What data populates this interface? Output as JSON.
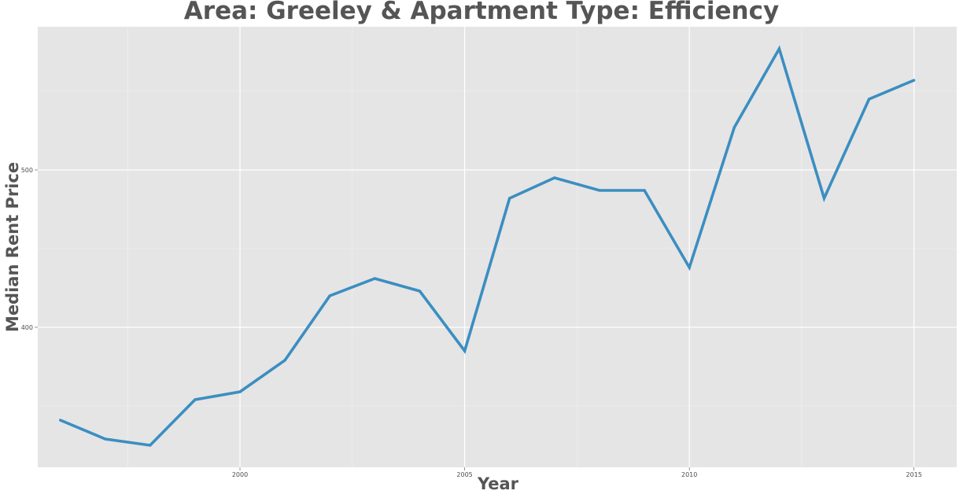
{
  "chart_data": {
    "type": "line",
    "title": "Area: Greeley & Apartment Type: Efficiency",
    "xlabel": "Year",
    "ylabel": "Median Rent Price",
    "xlim": [
      1995.5,
      2015.95
    ],
    "ylim": [
      311,
      591
    ],
    "x_ticks": [
      2000,
      2005,
      2010,
      2015
    ],
    "y_ticks": [
      400,
      500
    ],
    "grid": true,
    "series": [
      {
        "color": "#3b8ec1",
        "x": [
          1996,
          1997,
          1998,
          1999,
          2000,
          2001,
          2002,
          2003,
          2004,
          2005,
          2006,
          2007,
          2008,
          2009,
          2010,
          2011,
          2012,
          2013,
          2014,
          2015
        ],
        "values": [
          341,
          329,
          325,
          354,
          359,
          379,
          420,
          431,
          423,
          385,
          482,
          495,
          487,
          487,
          438,
          527,
          577,
          482,
          545,
          557
        ]
      }
    ]
  }
}
